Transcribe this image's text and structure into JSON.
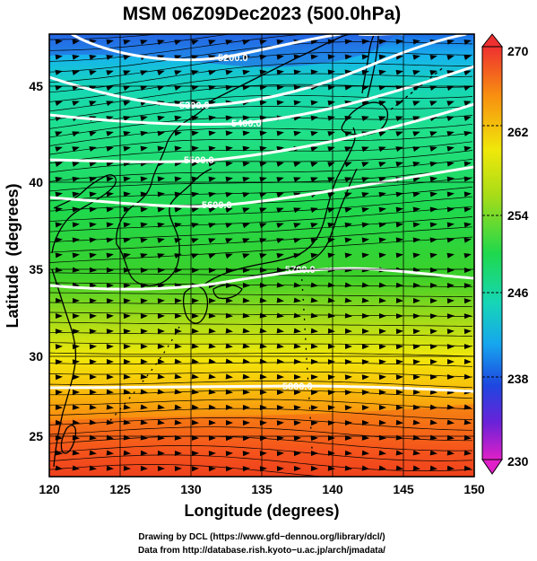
{
  "title": "MSM 06Z09Dec2023 (500.0hPa)",
  "xlabel": "Longitude (degrees)",
  "ylabel": "Latitude  (degrees)",
  "x_ticks": [
    "120",
    "125",
    "130",
    "135",
    "140",
    "145",
    "150"
  ],
  "y_ticks": [
    "45",
    "40",
    "35",
    "30",
    "25"
  ],
  "colorbar": {
    "min": 230,
    "max": 270,
    "labels": [
      "270",
      "262",
      "254",
      "246",
      "238",
      "230"
    ]
  },
  "contours": [
    {
      "value": 5200,
      "label": "5200.0"
    },
    {
      "value": 5300,
      "label": "5300.0"
    },
    {
      "value": 5400,
      "label": "5400.0"
    },
    {
      "value": 5500,
      "label": "5500.0"
    },
    {
      "value": 5600,
      "label": "5600.0"
    },
    {
      "value": 5700,
      "label": "5700.0"
    },
    {
      "value": 5800,
      "label": "5800.0"
    }
  ],
  "credits": {
    "line1": "Drawing by DCL (https://www.gfd−dennou.org/library/dcl/)",
    "line2": "Data from http://database.rish.kyoto−u.ac.jp/arch/jmadata/"
  }
}
